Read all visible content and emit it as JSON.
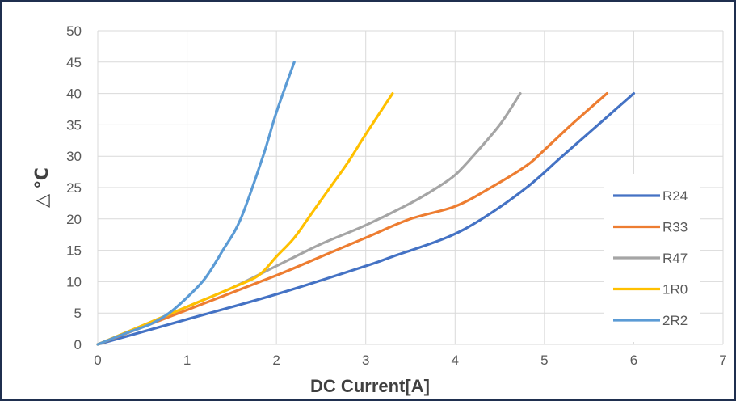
{
  "chart_data": {
    "type": "line",
    "title": "",
    "xlabel": "DC Current[A]",
    "ylabel": "△ ℃",
    "xlim": [
      0,
      7
    ],
    "ylim": [
      0,
      50
    ],
    "x_ticks": [
      "0",
      "1",
      "2",
      "3",
      "4",
      "5",
      "6",
      "7"
    ],
    "y_ticks": [
      "0",
      "5",
      "10",
      "15",
      "20",
      "25",
      "30",
      "35",
      "40",
      "45",
      "50"
    ],
    "grid": "on",
    "legend": "right",
    "series": [
      {
        "name": "R24",
        "color": "#4472C4",
        "points": [
          [
            0,
            0
          ],
          [
            1,
            4
          ],
          [
            2,
            8
          ],
          [
            3,
            12.5
          ],
          [
            3.3,
            14
          ],
          [
            3.9,
            17
          ],
          [
            4.3,
            20
          ],
          [
            4.8,
            25
          ],
          [
            5.2,
            30
          ],
          [
            5.6,
            35
          ],
          [
            6,
            40
          ]
        ]
      },
      {
        "name": "R33",
        "color": "#ED7D31",
        "points": [
          [
            0,
            0
          ],
          [
            1,
            5.5
          ],
          [
            2,
            11
          ],
          [
            2.5,
            14
          ],
          [
            3,
            17
          ],
          [
            3.5,
            20
          ],
          [
            4,
            22
          ],
          [
            4.4,
            25
          ],
          [
            4.8,
            28.5
          ],
          [
            5,
            31
          ],
          [
            5.3,
            35
          ],
          [
            5.7,
            40
          ]
        ]
      },
      {
        "name": "R47",
        "color": "#A5A5A5",
        "points": [
          [
            0,
            0
          ],
          [
            1,
            6
          ],
          [
            1.5,
            9
          ],
          [
            2,
            12.5
          ],
          [
            2.5,
            16
          ],
          [
            3,
            19
          ],
          [
            3.5,
            22.5
          ],
          [
            3.8,
            25
          ],
          [
            4,
            27
          ],
          [
            4.2,
            30
          ],
          [
            4.5,
            35
          ],
          [
            4.73,
            40
          ]
        ]
      },
      {
        "name": "1R0",
        "color": "#FFC000",
        "points": [
          [
            0,
            0
          ],
          [
            0.5,
            3
          ],
          [
            1,
            6
          ],
          [
            1.5,
            9
          ],
          [
            1.8,
            11
          ],
          [
            2,
            14
          ],
          [
            2.2,
            17
          ],
          [
            2.4,
            21
          ],
          [
            2.6,
            25
          ],
          [
            2.8,
            29
          ],
          [
            3,
            33.5
          ],
          [
            3.3,
            40
          ]
        ]
      },
      {
        "name": "2R2",
        "color": "#5B9BD5",
        "points": [
          [
            0,
            0
          ],
          [
            0.3,
            1.7
          ],
          [
            0.6,
            3.3
          ],
          [
            0.8,
            5
          ],
          [
            1,
            7.5
          ],
          [
            1.2,
            10.5
          ],
          [
            1.4,
            15
          ],
          [
            1.6,
            20
          ],
          [
            1.85,
            30
          ],
          [
            2,
            37
          ],
          [
            2.2,
            45
          ]
        ]
      }
    ]
  }
}
